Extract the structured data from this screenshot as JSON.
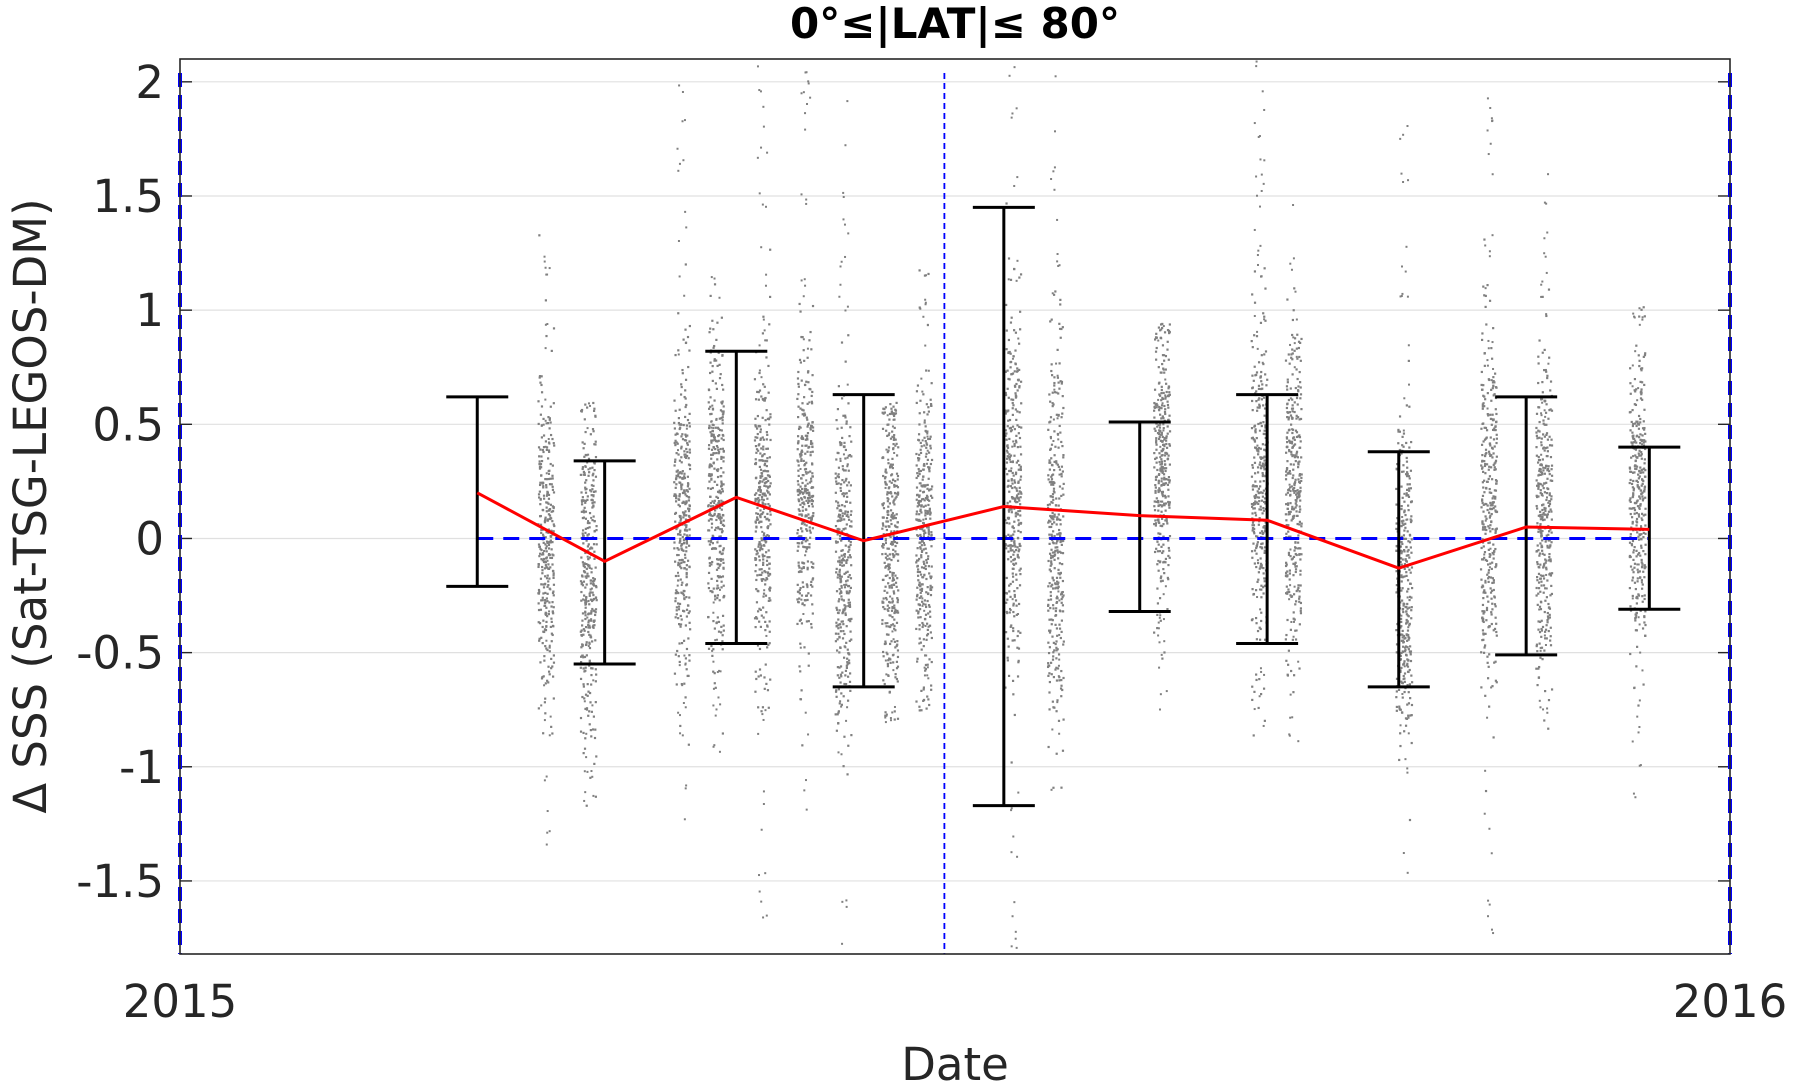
{
  "chart_data": {
    "type": "scatter",
    "title": "0°≤|LAT|≤ 80°",
    "xlabel": "Date",
    "ylabel": "Δ SSS (Sat-TSG-LEGOS-DM)",
    "x_range": [
      "2015-01-01",
      "2016-01-01"
    ],
    "x_ticks": [
      {
        "date": "2015-01-01",
        "label": "2015"
      },
      {
        "date": "2016-01-01",
        "label": "2016"
      }
    ],
    "ylim": [
      -1.82,
      2.1
    ],
    "y_ticks": [
      {
        "value": 2,
        "label": "2"
      },
      {
        "value": 1.5,
        "label": "1.5"
      },
      {
        "value": 1,
        "label": "1"
      },
      {
        "value": 0.5,
        "label": "0.5"
      },
      {
        "value": 0,
        "label": "0"
      },
      {
        "value": -0.5,
        "label": "-0.5"
      },
      {
        "value": -1,
        "label": "-1"
      },
      {
        "value": -1.5,
        "label": "-1.5"
      }
    ],
    "grid": true,
    "reference_line": {
      "value": 0,
      "style": "dashed",
      "color": "#0000ff"
    },
    "vertical_markers": [
      {
        "date": "2015-01-01",
        "style": "dashed",
        "color": "#0000ff"
      },
      {
        "date": "2015-06-30",
        "style": "dashed",
        "color": "#0000ff"
      },
      {
        "date": "2016-01-01",
        "style": "dashed",
        "color": "#0000ff"
      }
    ],
    "monthly_summary": {
      "mean_color": "#ff0000",
      "errorbar_color": "#000000",
      "points": [
        {
          "date": "2015-03-12",
          "mean": 0.2,
          "lower": -0.21,
          "upper": 0.62
        },
        {
          "date": "2015-04-11",
          "mean": -0.1,
          "lower": -0.55,
          "upper": 0.34
        },
        {
          "date": "2015-05-12",
          "mean": 0.18,
          "lower": -0.46,
          "upper": 0.82
        },
        {
          "date": "2015-06-11",
          "mean": -0.01,
          "lower": -0.65,
          "upper": 0.63
        },
        {
          "date": "2015-07-14",
          "mean": 0.14,
          "lower": -1.17,
          "upper": 1.45
        },
        {
          "date": "2015-08-15",
          "mean": 0.1,
          "lower": -0.32,
          "upper": 0.51
        },
        {
          "date": "2015-09-14",
          "mean": 0.08,
          "lower": -0.46,
          "upper": 0.63
        },
        {
          "date": "2015-10-15",
          "mean": -0.13,
          "lower": -0.65,
          "upper": 0.38
        },
        {
          "date": "2015-11-14",
          "mean": 0.05,
          "lower": -0.51,
          "upper": 0.62
        },
        {
          "date": "2015-12-13",
          "mean": 0.04,
          "lower": -0.31,
          "upper": 0.4
        }
      ]
    },
    "scatter": {
      "color": "#808080",
      "clusters": [
        {
          "date": "2015-03-28",
          "center": 0.0,
          "spread": 0.35,
          "min": -1.36,
          "max": 1.43
        },
        {
          "date": "2015-04-07",
          "center": -0.2,
          "spread": 0.35,
          "min": -1.17,
          "max": 0.6
        },
        {
          "date": "2015-04-29",
          "center": 0.1,
          "spread": 0.35,
          "min": -1.28,
          "max": 2.0
        },
        {
          "date": "2015-05-07",
          "center": 0.2,
          "spread": 0.35,
          "min": -1.0,
          "max": 1.15
        },
        {
          "date": "2015-05-18",
          "center": 0.1,
          "spread": 0.35,
          "min": -1.75,
          "max": 2.1
        },
        {
          "date": "2015-05-28",
          "center": 0.15,
          "spread": 0.35,
          "min": -1.25,
          "max": 2.1
        },
        {
          "date": "2015-06-06",
          "center": -0.1,
          "spread": 0.35,
          "min": -1.82,
          "max": 1.92
        },
        {
          "date": "2015-06-17",
          "center": 0.0,
          "spread": 0.35,
          "min": -0.8,
          "max": 0.6
        },
        {
          "date": "2015-06-25",
          "center": 0.0,
          "spread": 0.35,
          "min": -0.75,
          "max": 1.2
        },
        {
          "date": "2015-07-16",
          "center": 0.2,
          "spread": 0.4,
          "min": -1.8,
          "max": 2.1
        },
        {
          "date": "2015-07-26",
          "center": 0.0,
          "spread": 0.4,
          "min": -1.1,
          "max": 2.1
        },
        {
          "date": "2015-08-20",
          "center": 0.3,
          "spread": 0.3,
          "min": -0.8,
          "max": 0.95
        },
        {
          "date": "2015-09-12",
          "center": 0.2,
          "spread": 0.35,
          "min": -1.0,
          "max": 2.1
        },
        {
          "date": "2015-09-20",
          "center": 0.2,
          "spread": 0.35,
          "min": -1.0,
          "max": 1.65
        },
        {
          "date": "2015-10-16",
          "center": -0.2,
          "spread": 0.35,
          "min": -1.47,
          "max": 1.87
        },
        {
          "date": "2015-11-05",
          "center": 0.1,
          "spread": 0.4,
          "min": -1.82,
          "max": 1.95
        },
        {
          "date": "2015-11-18",
          "center": 0.1,
          "spread": 0.35,
          "min": -0.9,
          "max": 1.6
        },
        {
          "date": "2015-12-10",
          "center": 0.2,
          "spread": 0.35,
          "min": -1.15,
          "max": 1.02
        }
      ]
    }
  }
}
